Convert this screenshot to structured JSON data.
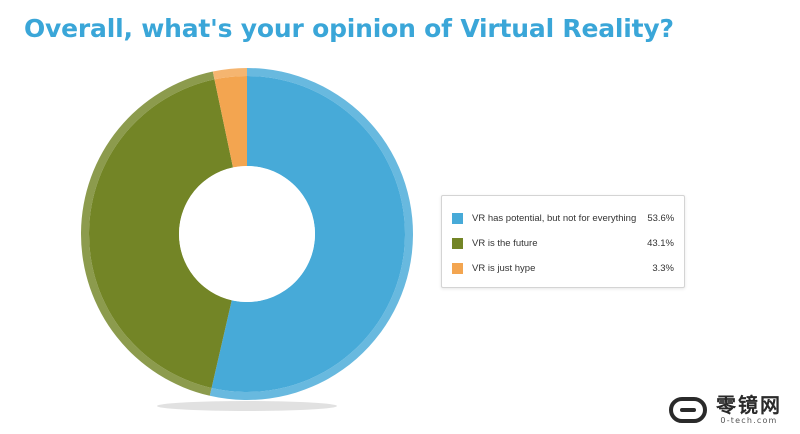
{
  "chart_data": {
    "type": "pie",
    "title": "Overall, what's your opinion of Virtual Reality?",
    "donut": true,
    "legend_position": "right",
    "categories": [
      "VR has potential, but not for everything",
      "VR is the future",
      "VR is just hype"
    ],
    "values": [
      53.6,
      43.1,
      3.3
    ],
    "value_labels": [
      "53.6%",
      "43.1%",
      "3.3%"
    ],
    "colors": [
      "#47aad8",
      "#738526",
      "#f3a550"
    ]
  },
  "watermark": {
    "cn_text": "零镜网",
    "en_text": "0-tech.com"
  }
}
